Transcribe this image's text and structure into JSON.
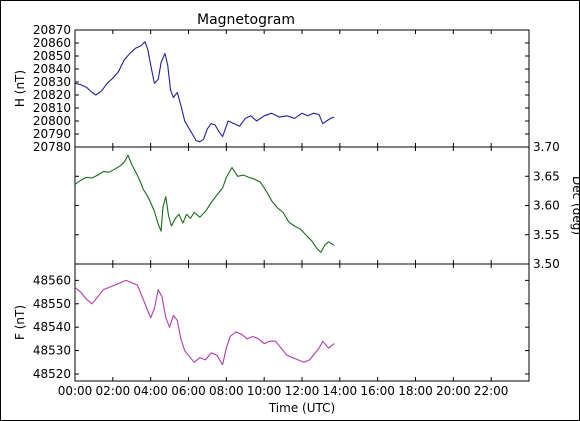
{
  "chart_data": {
    "type": "line",
    "title": "Magnetogram",
    "xlabel": "Time (UTC)",
    "x_unit": "hours",
    "xlim": [
      0,
      24
    ],
    "x_ticks": [
      0,
      2,
      4,
      6,
      8,
      10,
      12,
      14,
      16,
      18,
      20,
      22
    ],
    "x_tick_labels": [
      "00:00",
      "02:00",
      "04:00",
      "06:00",
      "08:00",
      "10:00",
      "12:00",
      "14:00",
      "16:00",
      "18:00",
      "20:00",
      "22:00"
    ],
    "panels": [
      {
        "ylabel": "H (nT)",
        "axis_side": "left",
        "ylim": [
          20780,
          20870
        ],
        "y_ticks": [
          20780,
          20790,
          20800,
          20810,
          20820,
          20830,
          20840,
          20850,
          20860,
          20870
        ],
        "color": "#1f1fa0",
        "series": [
          {
            "x": [
              0,
              0.3,
              0.6,
              0.9,
              1.1,
              1.4,
              1.7,
              2.0,
              2.3,
              2.6,
              2.9,
              3.2,
              3.5,
              3.7,
              3.85,
              4.0,
              4.2,
              4.4,
              4.55,
              4.75,
              4.9,
              5.05,
              5.2,
              5.4,
              5.6,
              5.8,
              6.0,
              6.2,
              6.4,
              6.6,
              6.8,
              7.0,
              7.2,
              7.4,
              7.6,
              7.8,
              7.95,
              8.1,
              8.4,
              8.7,
              9.0,
              9.3,
              9.6,
              10.0,
              10.4,
              10.8,
              11.2,
              11.6,
              12.0,
              12.3,
              12.6,
              12.9,
              13.1,
              13.3,
              13.5,
              13.7
            ],
            "y": [
              20829,
              20828,
              20826,
              20822,
              20820,
              20823,
              20829,
              20833,
              20838,
              20847,
              20852,
              20856,
              20858,
              20861,
              20855,
              20843,
              20829,
              20832,
              20845,
              20852,
              20843,
              20824,
              20818,
              20822,
              20812,
              20800,
              20795,
              20790,
              20785,
              20784,
              20786,
              20794,
              20798,
              20797,
              20792,
              20788,
              20794,
              20800,
              20798,
              20796,
              20802,
              20804,
              20800,
              20804,
              20806,
              20803,
              20804,
              20802,
              20806,
              20804,
              20806,
              20805,
              20798,
              20800,
              20802,
              20803
            ]
          }
        ]
      },
      {
        "ylabel": "Dec (deg)",
        "axis_side": "right",
        "ylim": [
          3.5,
          3.7
        ],
        "y_ticks": [
          3.5,
          3.55,
          3.6,
          3.65,
          3.7
        ],
        "y_tick_labels": [
          "3.50",
          "3.55",
          "3.60",
          "3.65",
          "3.70"
        ],
        "color": "#1a6b1a",
        "series": [
          {
            "x": [
              0,
              0.3,
              0.6,
              0.9,
              1.2,
              1.5,
              1.8,
              2.1,
              2.4,
              2.6,
              2.8,
              3.0,
              3.2,
              3.4,
              3.6,
              3.8,
              4.0,
              4.2,
              4.4,
              4.55,
              4.65,
              4.8,
              4.95,
              5.1,
              5.3,
              5.5,
              5.7,
              5.9,
              6.1,
              6.3,
              6.6,
              6.9,
              7.2,
              7.5,
              7.8,
              8.0,
              8.3,
              8.6,
              8.9,
              9.2,
              9.5,
              9.8,
              10.1,
              10.4,
              10.7,
              11.0,
              11.3,
              11.6,
              11.9,
              12.2,
              12.5,
              12.8,
              13.0,
              13.2,
              13.4,
              13.7
            ],
            "y": [
              3.636,
              3.643,
              3.648,
              3.647,
              3.652,
              3.658,
              3.657,
              3.662,
              3.668,
              3.674,
              3.686,
              3.67,
              3.658,
              3.645,
              3.628,
              3.618,
              3.605,
              3.59,
              3.568,
              3.556,
              3.598,
              3.615,
              3.582,
              3.565,
              3.578,
              3.585,
              3.57,
              3.585,
              3.578,
              3.588,
              3.58,
              3.59,
              3.605,
              3.618,
              3.63,
              3.648,
              3.665,
              3.65,
              3.652,
              3.648,
              3.645,
              3.64,
              3.625,
              3.608,
              3.596,
              3.588,
              3.572,
              3.565,
              3.56,
              3.55,
              3.54,
              3.526,
              3.52,
              3.532,
              3.538,
              3.532
            ]
          }
        ]
      },
      {
        "ylabel": "F (nT)",
        "axis_side": "left",
        "ylim": [
          48517,
          48567
        ],
        "y_ticks": [
          48520,
          48530,
          48540,
          48550,
          48560
        ],
        "color": "#b03ab0",
        "series": [
          {
            "x": [
              0,
              0.3,
              0.6,
              0.9,
              1.2,
              1.5,
              1.8,
              2.1,
              2.4,
              2.7,
              3.0,
              3.3,
              3.6,
              3.8,
              4.0,
              4.2,
              4.4,
              4.6,
              4.8,
              5.0,
              5.2,
              5.4,
              5.6,
              5.8,
              6.0,
              6.3,
              6.6,
              6.9,
              7.2,
              7.5,
              7.8,
              8.0,
              8.2,
              8.5,
              8.8,
              9.1,
              9.4,
              9.7,
              10.0,
              10.3,
              10.6,
              10.9,
              11.2,
              11.5,
              11.8,
              12.1,
              12.4,
              12.7,
              12.9,
              13.1,
              13.4,
              13.7
            ],
            "y": [
              48557,
              48555,
              48552,
              48550,
              48553,
              48556,
              48557,
              48558,
              48559,
              48560,
              48559,
              48558,
              48552,
              48548,
              48544,
              48548,
              48556,
              48553,
              48544,
              48540,
              48545,
              48543,
              48535,
              48530,
              48528,
              48525,
              48527,
              48526,
              48529,
              48528,
              48524,
              48531,
              48536,
              48538,
              48537,
              48535,
              48536,
              48535,
              48533,
              48534,
              48534,
              48531,
              48528,
              48527,
              48526,
              48525,
              48526,
              48529,
              48531,
              48534,
              48531,
              48533
            ]
          }
        ]
      }
    ]
  }
}
